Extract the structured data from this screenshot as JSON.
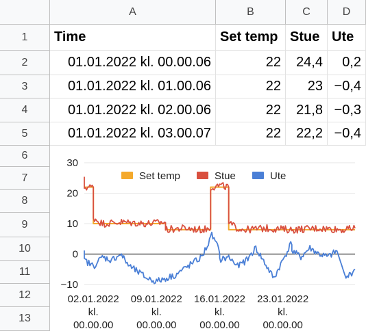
{
  "columns": [
    "A",
    "B",
    "C",
    "D"
  ],
  "rows": [
    "1",
    "2",
    "3",
    "4",
    "5",
    "6",
    "7",
    "8",
    "9",
    "10",
    "11",
    "12",
    "13"
  ],
  "header_row": {
    "time": "Time",
    "set": "Set temp",
    "stue": "Stue",
    "ute": "Ute"
  },
  "data_rows": [
    {
      "time": "01.01.2022 kl. 00.00.06",
      "set": "22",
      "stue": "24,4",
      "ute": "0,2"
    },
    {
      "time": "01.01.2022 kl. 01.00.06",
      "set": "22",
      "stue": "23",
      "ute": "−0,4"
    },
    {
      "time": "01.01.2022 kl. 02.00.06",
      "set": "22",
      "stue": "21,8",
      "ute": "−0,3"
    },
    {
      "time": "01.01.2022 kl. 03.00.07",
      "set": "22",
      "stue": "22,2",
      "ute": "−0,4"
    }
  ],
  "colors": {
    "set": "#f4a92c",
    "stue": "#d9503f",
    "ute": "#4a7fd6"
  },
  "chart_data": {
    "type": "line",
    "ylim": [
      -10,
      30
    ],
    "yticks": [
      "30",
      "20",
      "10",
      "0",
      "−10"
    ],
    "yticks_values": [
      30,
      20,
      10,
      0,
      -10
    ],
    "xlim": [
      "2022-01-01",
      "2022-01-31"
    ],
    "xticks": [
      {
        "date": "2022-01-02",
        "line1": "02.01.2022",
        "line2": "kl.",
        "line3": "00.00.00"
      },
      {
        "date": "2022-01-09",
        "line1": "09.01.2022",
        "line2": "kl.",
        "line3": "00.00.00"
      },
      {
        "date": "2022-01-16",
        "line1": "16.01.2022",
        "line2": "kl.",
        "line3": "00.00.00"
      },
      {
        "date": "2022-01-23",
        "line1": "23.01.2022",
        "line2": "kl.",
        "line3": "00.00.00"
      }
    ],
    "legend": "top",
    "series": [
      {
        "name": "Set temp",
        "key": "set",
        "x": [
          "2022-01-01",
          "2022-01-02",
          "2022-01-02",
          "2022-01-10",
          "2022-01-10",
          "2022-01-15",
          "2022-01-15",
          "2022-01-17",
          "2022-01-17",
          "2022-01-31"
        ],
        "y": [
          22,
          22,
          10,
          10,
          8,
          8,
          22,
          22,
          8,
          8
        ]
      },
      {
        "name": "Stue",
        "key": "stue",
        "x": [
          "2022-01-01",
          "2022-01-01",
          "2022-01-02",
          "2022-01-02",
          "2022-01-03",
          "2022-01-05",
          "2022-01-08",
          "2022-01-10",
          "2022-01-10",
          "2022-01-12",
          "2022-01-14",
          "2022-01-15",
          "2022-01-15",
          "2022-01-16",
          "2022-01-17",
          "2022-01-17",
          "2022-01-18",
          "2022-01-19",
          "2022-01-21",
          "2022-01-24",
          "2022-01-27",
          "2022-01-30",
          "2022-01-31"
        ],
        "y": [
          24.4,
          22,
          22,
          12,
          10,
          10.5,
          10,
          10.5,
          8,
          8.5,
          8,
          8.5,
          22,
          22.5,
          22,
          10,
          8.5,
          8,
          8.5,
          8,
          8.5,
          8,
          8.5
        ]
      },
      {
        "name": "Ute",
        "key": "ute",
        "x": [
          "2022-01-01",
          "2022-01-01",
          "2022-01-02",
          "2022-01-03",
          "2022-01-04",
          "2022-01-05",
          "2022-01-06",
          "2022-01-07",
          "2022-01-08",
          "2022-01-09",
          "2022-01-10",
          "2022-01-11",
          "2022-01-12",
          "2022-01-13",
          "2022-01-14",
          "2022-01-15",
          "2022-01-15",
          "2022-01-16",
          "2022-01-16",
          "2022-01-17",
          "2022-01-18",
          "2022-01-19",
          "2022-01-20",
          "2022-01-21",
          "2022-01-22",
          "2022-01-23",
          "2022-01-24",
          "2022-01-24",
          "2022-01-25",
          "2022-01-26",
          "2022-01-27",
          "2022-01-28",
          "2022-01-29",
          "2022-01-30",
          "2022-01-31"
        ],
        "y": [
          0.2,
          -2,
          -4,
          -1,
          -2,
          0,
          -4,
          -6,
          -8,
          -9,
          -8,
          -7,
          -5,
          -3,
          -1,
          5,
          7,
          1,
          -2,
          -1,
          -4,
          -2,
          2,
          -3,
          -8,
          -2,
          4,
          1,
          -1,
          2,
          0,
          -1,
          1,
          -8,
          -5
        ]
      }
    ]
  }
}
